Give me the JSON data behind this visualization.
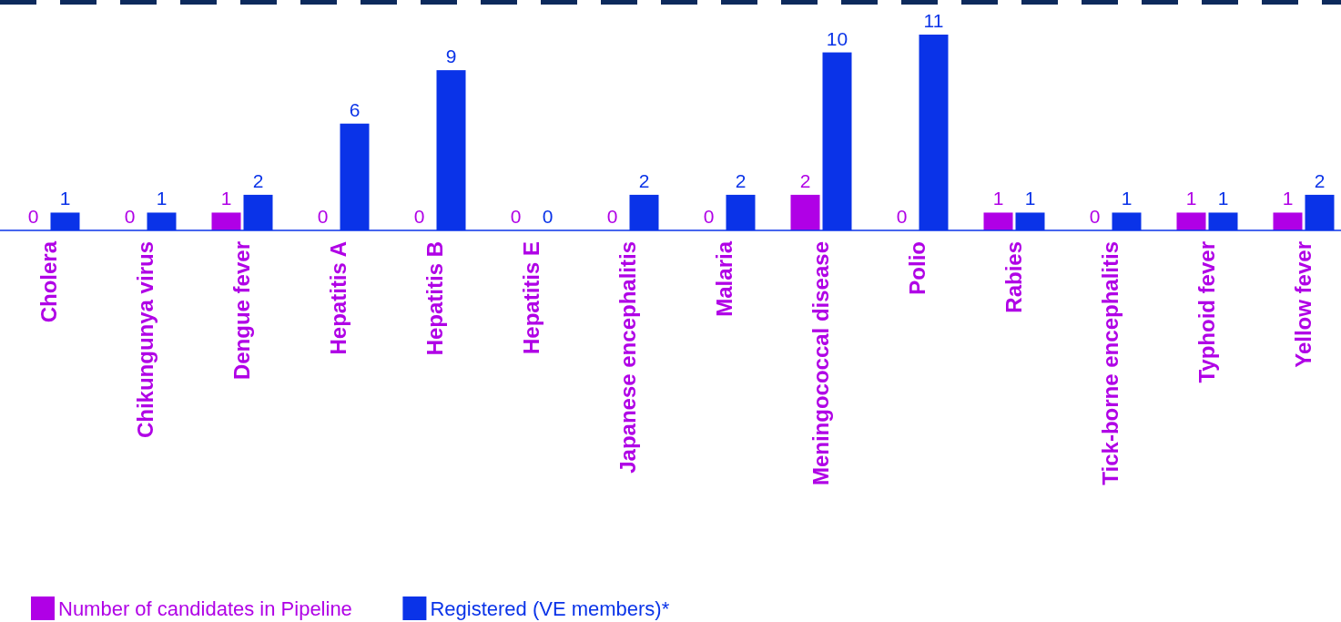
{
  "chart_data": {
    "type": "bar",
    "categories": [
      "Cholera",
      "Chikungunya virus",
      "Dengue fever",
      "Hepatitis A",
      "Hepatitis B",
      "Hepatitis E",
      "Japanese encephalitis",
      "Malaria",
      "Meningococcal disease",
      "Polio",
      "Rabies",
      "Tick-borne encephalitis",
      "Typhoid fever",
      "Yellow fever"
    ],
    "series": [
      {
        "name": "Number of candidates in Pipeline",
        "color": "#b000e6",
        "values": [
          0,
          0,
          1,
          0,
          0,
          0,
          0,
          0,
          2,
          0,
          1,
          0,
          1,
          1
        ]
      },
      {
        "name": "Registered (VE members)*",
        "color": "#0a33e8",
        "values": [
          1,
          1,
          2,
          6,
          9,
          0,
          2,
          2,
          10,
          11,
          1,
          1,
          1,
          2
        ]
      }
    ],
    "data_labels": true,
    "legend": "bottom left",
    "grid": false
  }
}
